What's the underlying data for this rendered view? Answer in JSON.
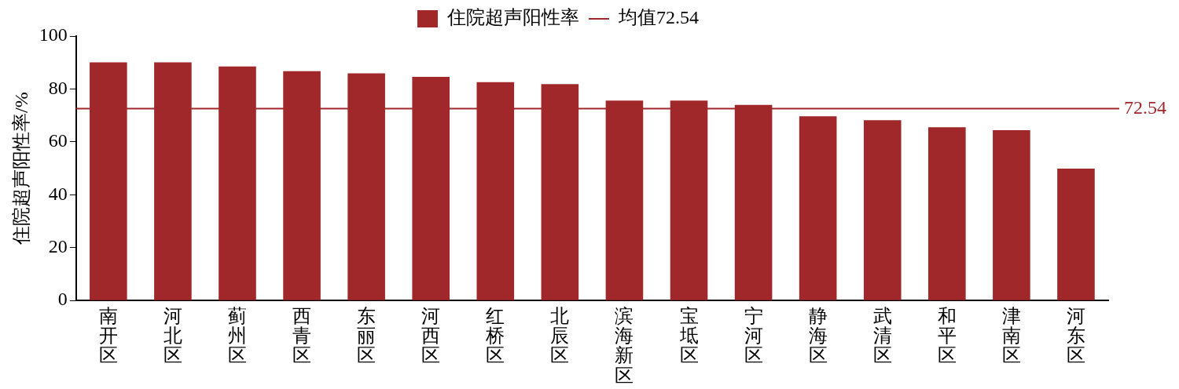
{
  "chart_data": {
    "type": "bar",
    "ylabel": "住院超声阳性率/%",
    "categories": [
      "南开区",
      "河北区",
      "蓟州区",
      "西青区",
      "东丽区",
      "河西区",
      "红桥区",
      "北辰区",
      "滨海新区",
      "宝坻区",
      "宁河区",
      "静海区",
      "武清区",
      "和平区",
      "津南区",
      "河东区"
    ],
    "series": [
      {
        "name": "住院超声阳性率",
        "color": "#a0282a",
        "values": [
          90.1,
          90.1,
          88.5,
          86.7,
          85.9,
          84.6,
          82.6,
          81.8,
          75.6,
          75.6,
          74.0,
          69.7,
          68.2,
          65.5,
          64.4,
          49.9
        ]
      }
    ],
    "ylim": [
      0,
      100
    ],
    "yticks": [
      0,
      20,
      40,
      60,
      80,
      100
    ],
    "grid": false,
    "legend": "top",
    "annotations": [
      "均值72.54"
    ],
    "ref_lines": [
      {
        "axis": "y",
        "value": 72.54,
        "label": "72.54",
        "color": "#a0282a",
        "line_style": "solid"
      }
    ]
  }
}
